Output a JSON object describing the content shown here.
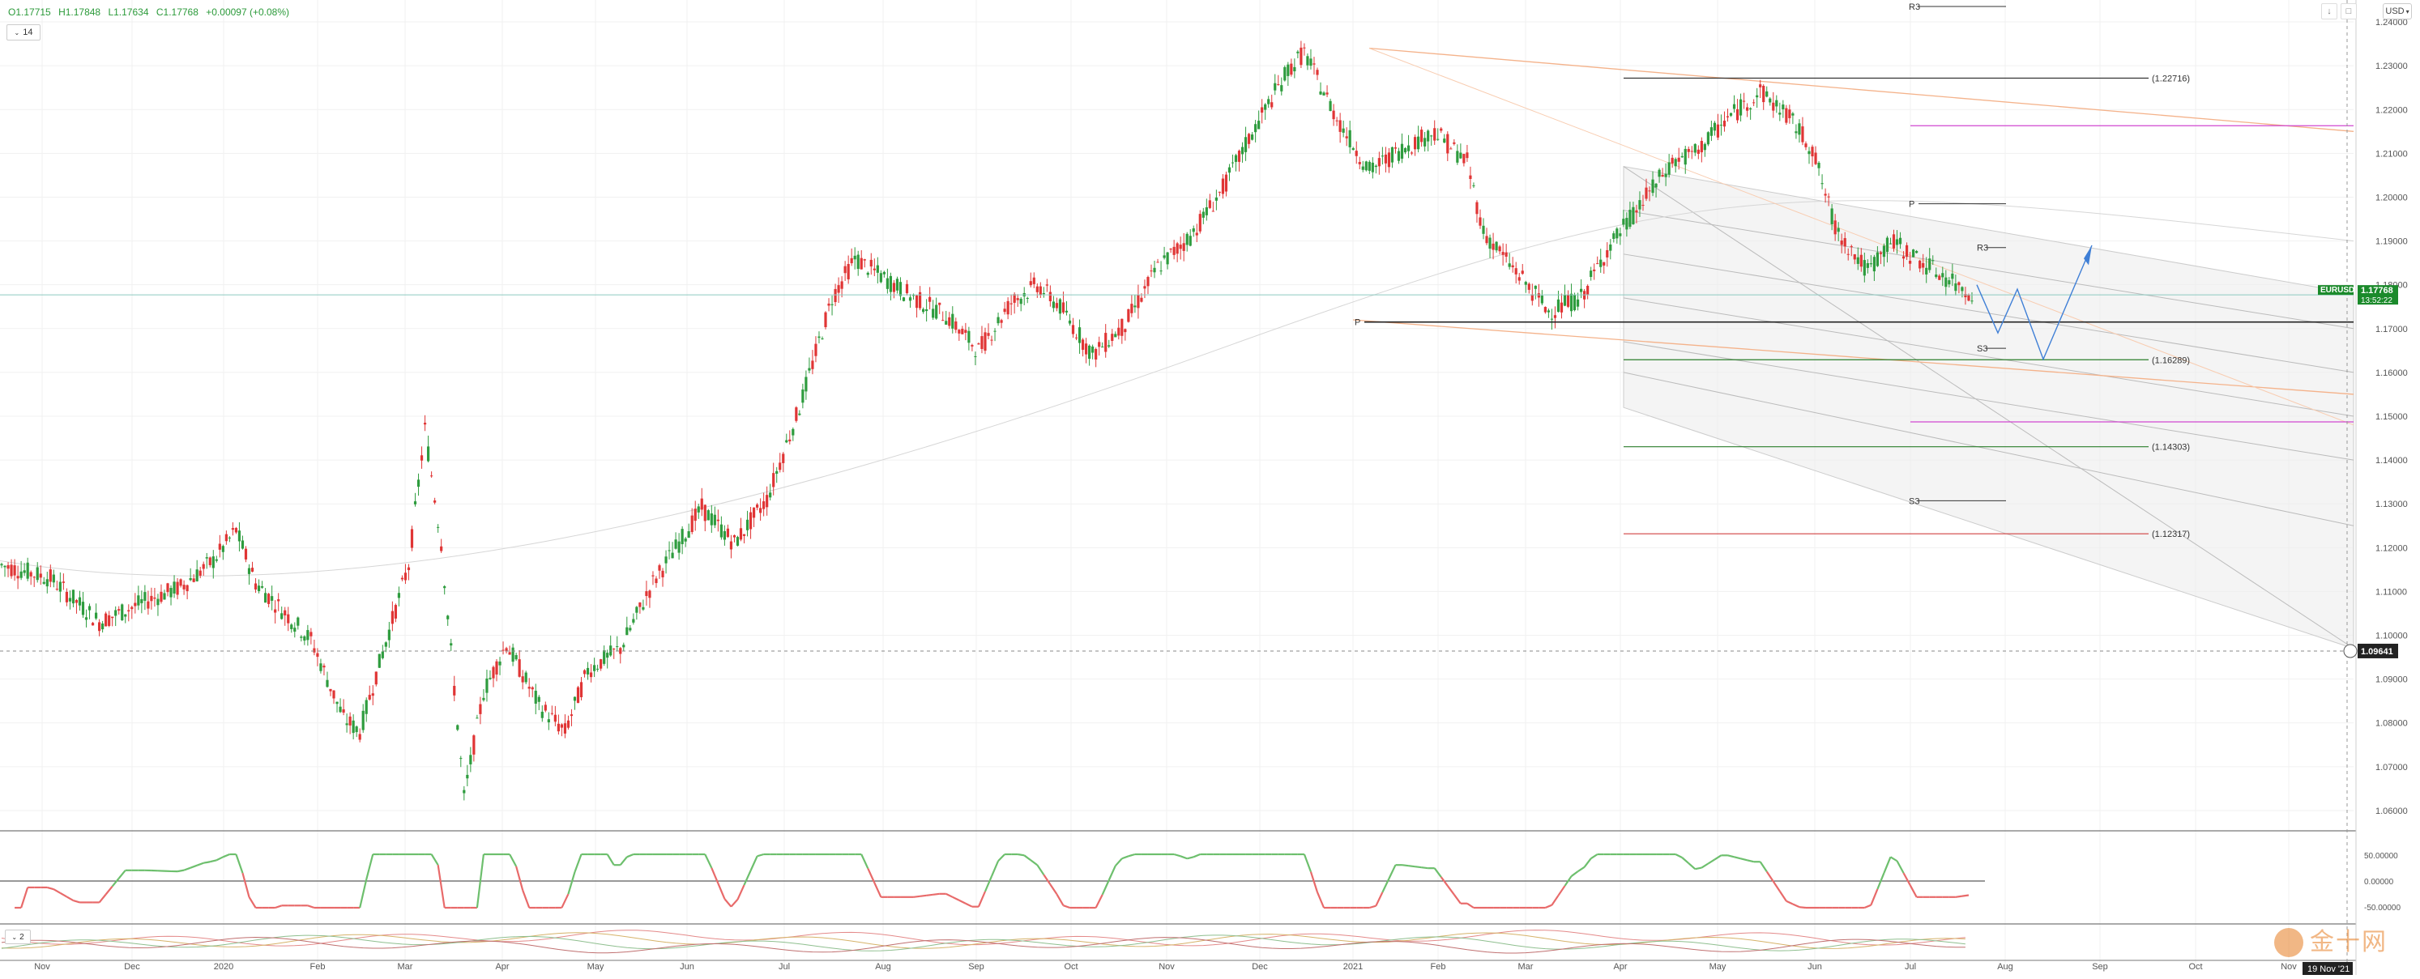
{
  "header": {
    "open": "O1.17715",
    "high": "H1.17848",
    "low": "L1.17634",
    "close": "C1.17768",
    "change": "+0.00097 (+0.08%)"
  },
  "controls": {
    "period_label": "14",
    "currency_label": "USD",
    "subpane_label": "2"
  },
  "watermark": {
    "text": "金十网"
  },
  "colors": {
    "up": "#2e9c3e",
    "down": "#e03535",
    "accent_green": "#1b8a2b",
    "magenta": "#d047d0",
    "forecast": "#3f7fd6",
    "osc_green": "#6dbf6d",
    "osc_red": "#e86a6a"
  },
  "chart_data": {
    "type": "candlestick",
    "symbol": "EURUSD",
    "last_price": "1.17768",
    "countdown": "13:52:22",
    "cursor_price": "1.09641",
    "cursor_time": "19 Nov '21",
    "ylim": [
      1.055,
      1.245
    ],
    "y_ticks": [
      "1.24000",
      "1.23000",
      "1.22000",
      "1.21000",
      "1.20000",
      "1.19000",
      "1.18000",
      "1.17000",
      "1.16000",
      "1.15000",
      "1.14000",
      "1.13000",
      "1.12000",
      "1.11000",
      "1.10000",
      "1.09000",
      "1.08000",
      "1.07000",
      "1.06000"
    ],
    "x_ticks": [
      "Nov",
      "Dec",
      "2020",
      "Feb",
      "Mar",
      "Apr",
      "May",
      "Jun",
      "Jul",
      "Aug",
      "Sep",
      "Oct",
      "Nov",
      "Dec",
      "2021",
      "Feb",
      "Mar",
      "Apr",
      "May",
      "Jun",
      "Jul",
      "Aug",
      "Sep",
      "Oct",
      "Nov"
    ],
    "price_path": [
      [
        0,
        1.116
      ],
      [
        15,
        1.113
      ],
      [
        30,
        1.103
      ],
      [
        45,
        1.108
      ],
      [
        55,
        1.111
      ],
      [
        65,
        1.117
      ],
      [
        72,
        1.124
      ],
      [
        78,
        1.112
      ],
      [
        95,
        1.099
      ],
      [
        105,
        1.081
      ],
      [
        110,
        1.078
      ],
      [
        115,
        1.091
      ],
      [
        125,
        1.116
      ],
      [
        130,
        1.147
      ],
      [
        135,
        1.121
      ],
      [
        142,
        1.063
      ],
      [
        148,
        1.087
      ],
      [
        155,
        1.098
      ],
      [
        165,
        1.084
      ],
      [
        173,
        1.078
      ],
      [
        180,
        1.092
      ],
      [
        190,
        1.097
      ],
      [
        200,
        1.112
      ],
      [
        215,
        1.129
      ],
      [
        225,
        1.121
      ],
      [
        235,
        1.131
      ],
      [
        245,
        1.152
      ],
      [
        255,
        1.177
      ],
      [
        262,
        1.186
      ],
      [
        270,
        1.182
      ],
      [
        280,
        1.177
      ],
      [
        290,
        1.173
      ],
      [
        300,
        1.165
      ],
      [
        310,
        1.176
      ],
      [
        318,
        1.18
      ],
      [
        325,
        1.175
      ],
      [
        335,
        1.164
      ],
      [
        345,
        1.171
      ],
      [
        355,
        1.184
      ],
      [
        365,
        1.191
      ],
      [
        375,
        1.202
      ],
      [
        385,
        1.216
      ],
      [
        395,
        1.229
      ],
      [
        400,
        1.233
      ],
      [
        410,
        1.218
      ],
      [
        420,
        1.206
      ],
      [
        430,
        1.211
      ],
      [
        440,
        1.215
      ],
      [
        450,
        1.208
      ],
      [
        455,
        1.192
      ],
      [
        465,
        1.183
      ],
      [
        475,
        1.174
      ],
      [
        485,
        1.177
      ],
      [
        493,
        1.188
      ],
      [
        503,
        1.198
      ],
      [
        513,
        1.208
      ],
      [
        520,
        1.21
      ],
      [
        530,
        1.218
      ],
      [
        540,
        1.224
      ],
      [
        548,
        1.219
      ],
      [
        556,
        1.211
      ],
      [
        563,
        1.193
      ],
      [
        573,
        1.183
      ],
      [
        580,
        1.19
      ],
      [
        590,
        1.185
      ],
      [
        600,
        1.18
      ],
      [
        606,
        1.1777
      ]
    ],
    "levels": [
      {
        "label": "(1.22716)",
        "value": 1.22716,
        "color": "#333333"
      },
      {
        "label": "(1.16289)",
        "value": 1.16289,
        "color": "#2a7d2a"
      },
      {
        "label": "(1.14303)",
        "value": 1.14303,
        "color": "#2a7d2a"
      },
      {
        "label": "(1.12317)",
        "value": 1.12317,
        "color": "#d04040"
      }
    ],
    "pivots": [
      {
        "label": "R3",
        "value": 1.245
      },
      {
        "label": "P",
        "value": 1.1985
      },
      {
        "label": "R3",
        "value": 1.1885
      },
      {
        "label": "P",
        "value": 1.1715
      },
      {
        "label": "S3",
        "value": 1.1655
      },
      {
        "label": "S3",
        "value": 1.1307
      }
    ],
    "oscillator_ticks": [
      "50.00000",
      "0.00000",
      "-50.00000"
    ]
  }
}
